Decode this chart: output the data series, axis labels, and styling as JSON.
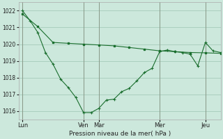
{
  "background_color": "#cce8dc",
  "grid_color": "#aacfbf",
  "line_color": "#1a6e2e",
  "xlabel": "Pression niveau de la mer( hPa )",
  "ylim": [
    1015.5,
    1022.5
  ],
  "yticks": [
    1016,
    1017,
    1018,
    1019,
    1020,
    1021,
    1022
  ],
  "day_labels": [
    "Lun",
    "Ven",
    "Mar",
    "Mer",
    "Jeu"
  ],
  "day_positions": [
    0,
    8,
    10,
    18,
    24
  ],
  "xlim": [
    -0.5,
    26
  ],
  "s1_x": [
    0,
    2,
    4,
    6,
    8,
    10,
    12,
    14,
    16,
    18,
    20,
    22,
    24,
    26
  ],
  "s1_y": [
    1021.8,
    1021.05,
    1020.1,
    1020.05,
    1020.0,
    1019.95,
    1019.9,
    1019.8,
    1019.7,
    1019.6,
    1019.55,
    1019.5,
    1019.48,
    1019.45
  ],
  "s2_x": [
    0,
    1,
    2,
    3,
    4,
    5,
    6,
    7,
    8,
    9,
    10,
    11,
    12,
    13,
    14,
    15,
    16,
    17,
    18,
    19,
    20,
    21,
    22,
    23,
    24,
    25,
    26
  ],
  "s2_y": [
    1022.0,
    1021.4,
    1020.7,
    1019.5,
    1018.8,
    1017.9,
    1017.4,
    1016.8,
    1015.9,
    1015.9,
    1016.15,
    1016.65,
    1016.7,
    1017.15,
    1017.35,
    1017.8,
    1018.3,
    1018.55,
    1019.55,
    1019.65,
    1019.55,
    1019.5,
    1019.4,
    1018.7,
    1020.1,
    1019.6,
    1019.5
  ]
}
